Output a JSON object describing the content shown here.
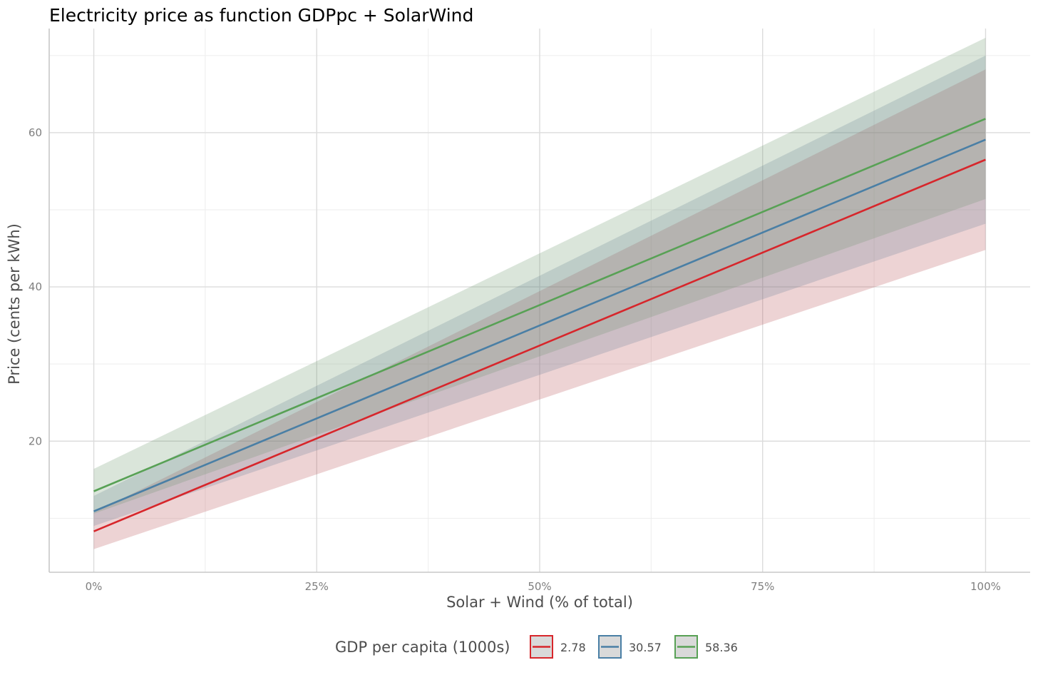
{
  "chart_data": {
    "type": "line",
    "title": "Electricity price as function GDPpc + SolarWind",
    "xlabel": "Solar + Wind (% of total)",
    "ylabel": "Price (cents per kWh)",
    "xlim": [
      -0.05,
      1.05
    ],
    "ylim": [
      3,
      73.5
    ],
    "x_ticks": [
      0,
      0.25,
      0.5,
      0.75,
      1.0
    ],
    "x_tick_labels": [
      "0%",
      "25%",
      "50%",
      "75%",
      "100%"
    ],
    "y_ticks": [
      20,
      40,
      60
    ],
    "y_tick_labels": [
      "20",
      "40",
      "60"
    ],
    "y_minor_ticks": [
      10,
      30,
      50,
      70
    ],
    "x_minor_ticks": [
      0.125,
      0.375,
      0.625,
      0.875
    ],
    "grid": true,
    "legend": {
      "title": "GDP per capita (1000s)",
      "position": "bottom"
    },
    "series": [
      {
        "name": "2.78",
        "color": "#d7262b",
        "x": [
          0,
          1
        ],
        "fit": [
          8.3,
          56.5
        ],
        "lower": [
          6.0,
          44.8
        ],
        "upper": [
          10.7,
          68.2
        ]
      },
      {
        "name": "30.57",
        "color": "#4a7fa5",
        "x": [
          0,
          1
        ],
        "fit": [
          10.9,
          59.1
        ],
        "lower": [
          9.0,
          48.2
        ],
        "upper": [
          12.9,
          70.0
        ]
      },
      {
        "name": "58.36",
        "color": "#58a155",
        "x": [
          0,
          1
        ],
        "fit": [
          13.5,
          61.8
        ],
        "lower": [
          10.6,
          51.4
        ],
        "upper": [
          16.4,
          72.3
        ]
      }
    ]
  }
}
